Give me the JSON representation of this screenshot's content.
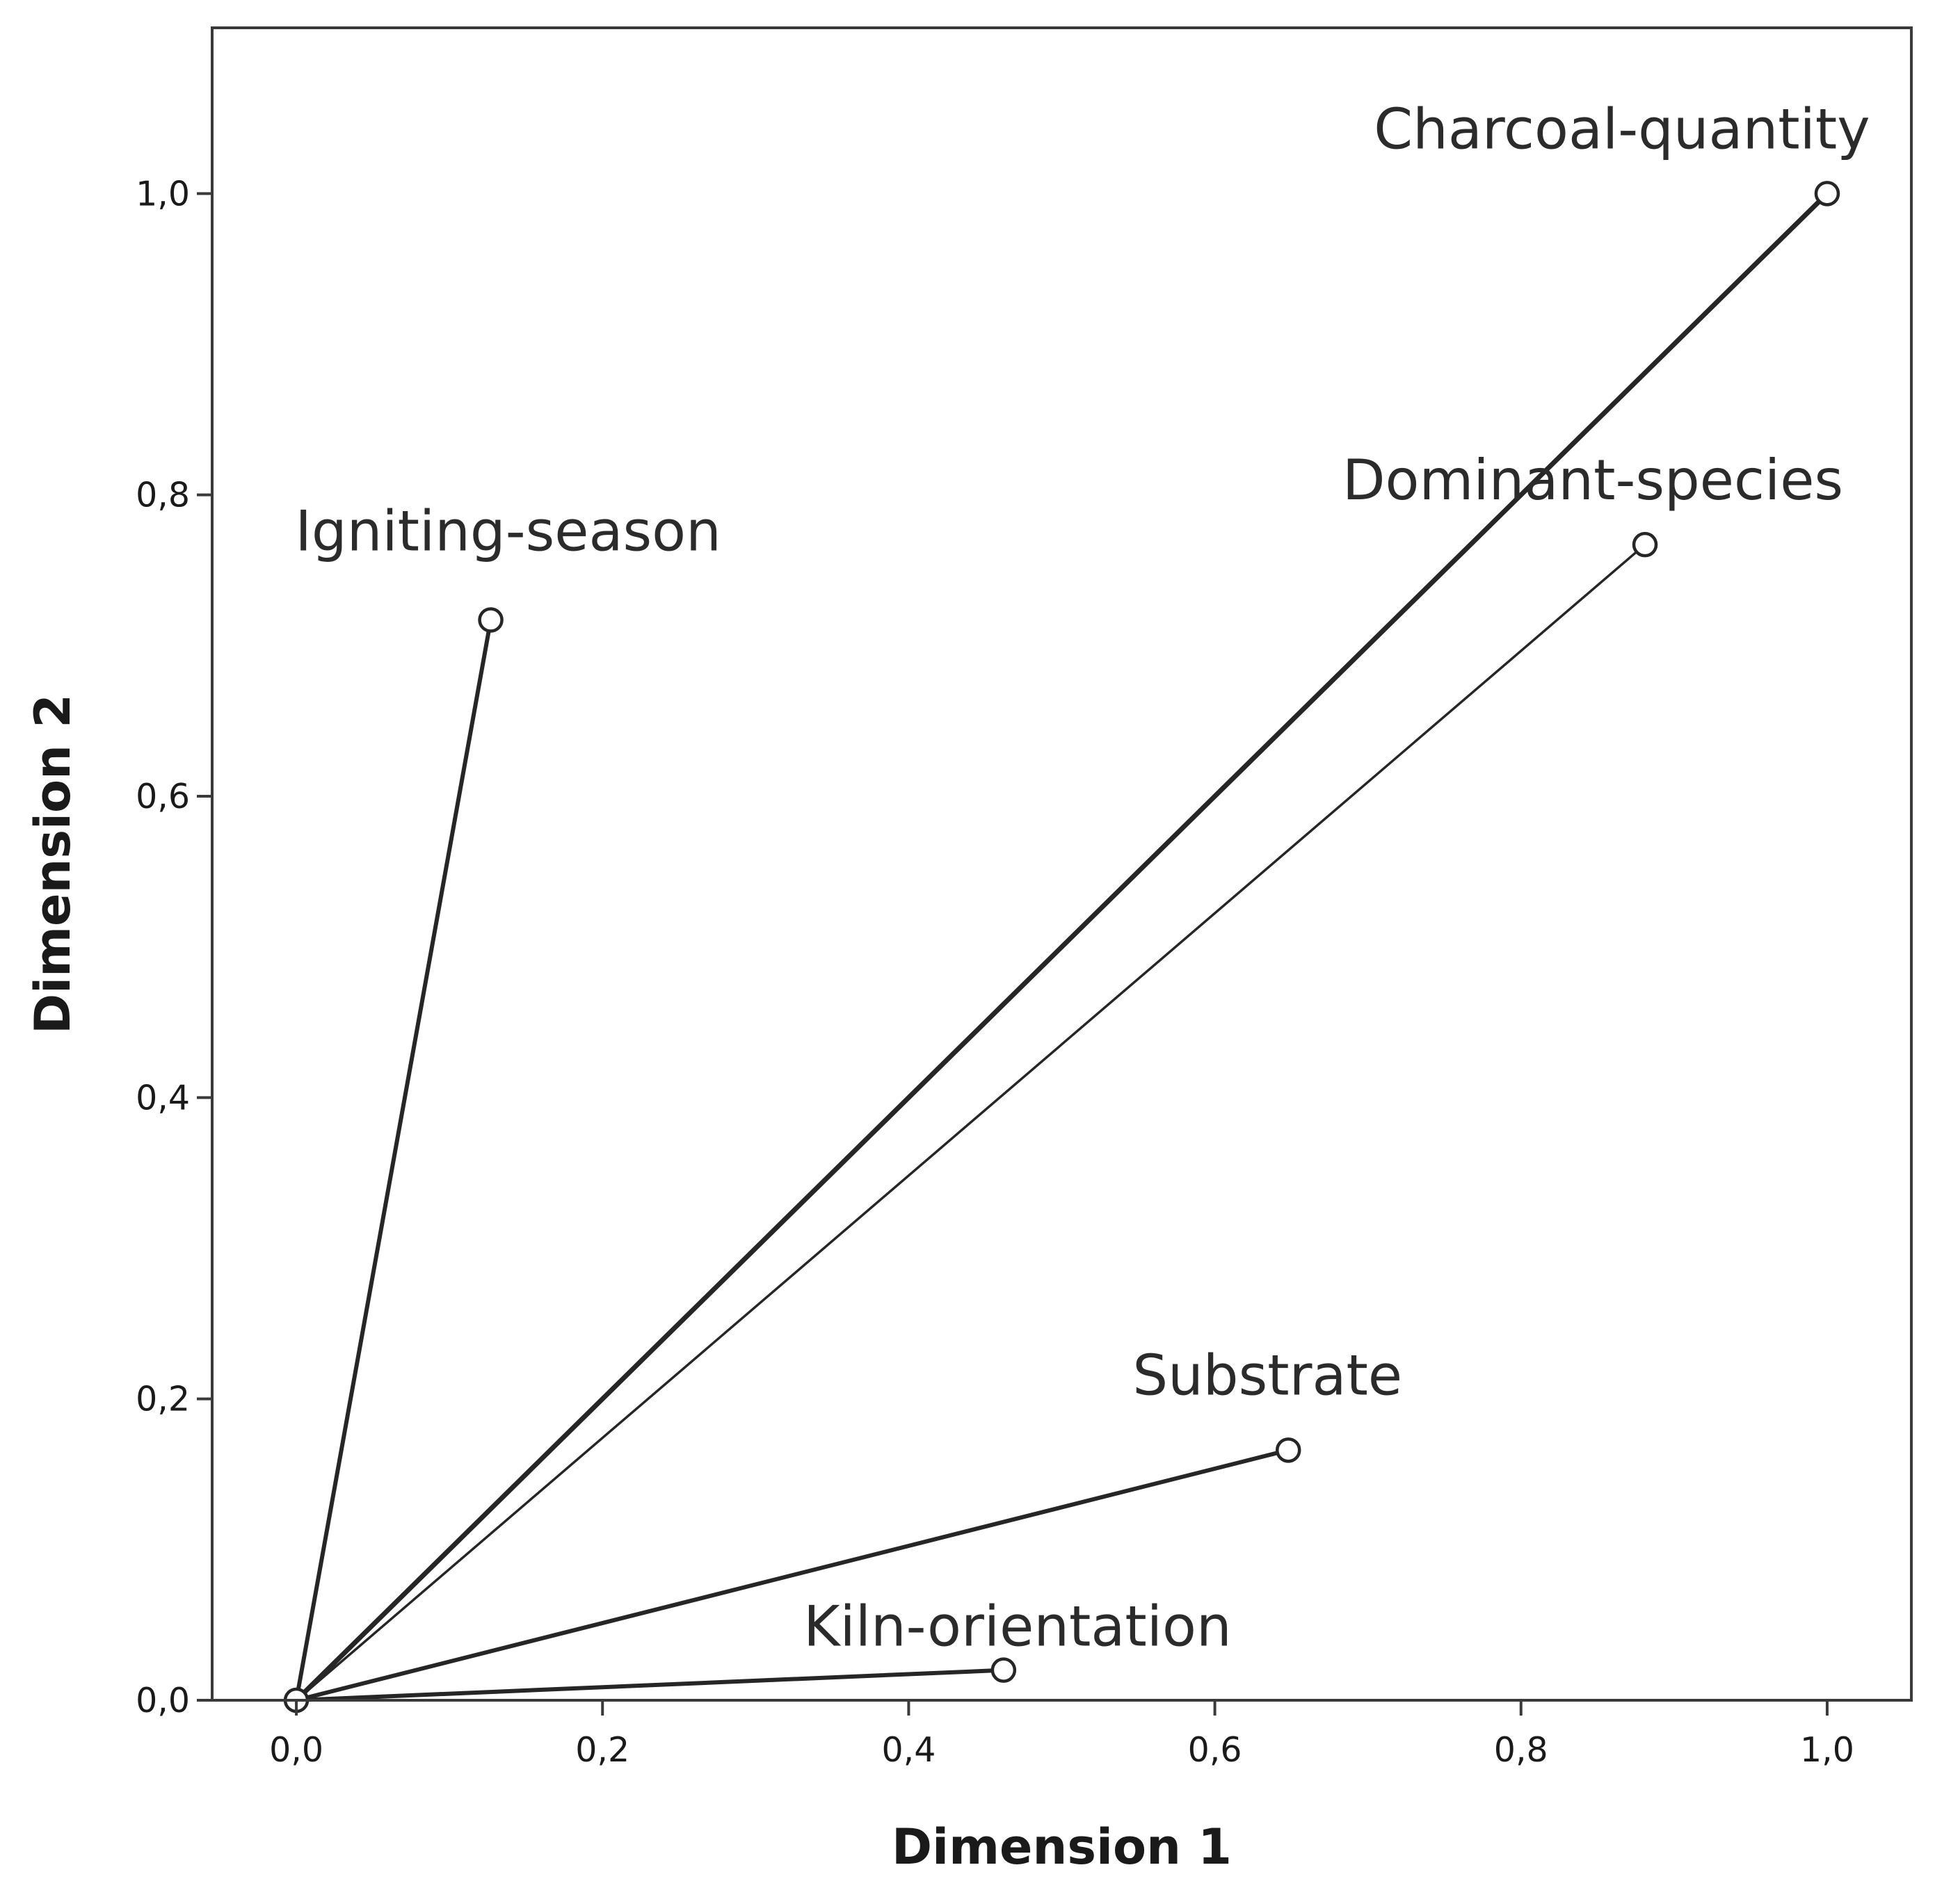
{
  "chart_data": {
    "type": "scatter",
    "xlabel": "Dimension 1",
    "ylabel": "Dimension 2",
    "xlim": [
      -0.055,
      1.055
    ],
    "ylim": [
      0.0,
      1.11
    ],
    "xticks": [
      "0,0",
      "0,2",
      "0,4",
      "0,6",
      "0,8",
      "1,0"
    ],
    "yticks": [
      "0,0",
      "0,2",
      "0,4",
      "0,6",
      "0,8",
      "1,0"
    ],
    "grid": false,
    "origin": [
      0.0,
      0.0
    ],
    "points": [
      {
        "name": "Charcoal-quantity",
        "x": 1.0,
        "y": 1.0
      },
      {
        "name": "Dominant-species",
        "x": 0.881,
        "y": 0.767
      },
      {
        "name": "Igniting-season",
        "x": 0.127,
        "y": 0.717
      },
      {
        "name": "Substrate",
        "x": 0.648,
        "y": 0.166
      },
      {
        "name": "Kiln-orientation",
        "x": 0.462,
        "y": 0.02
      }
    ]
  }
}
